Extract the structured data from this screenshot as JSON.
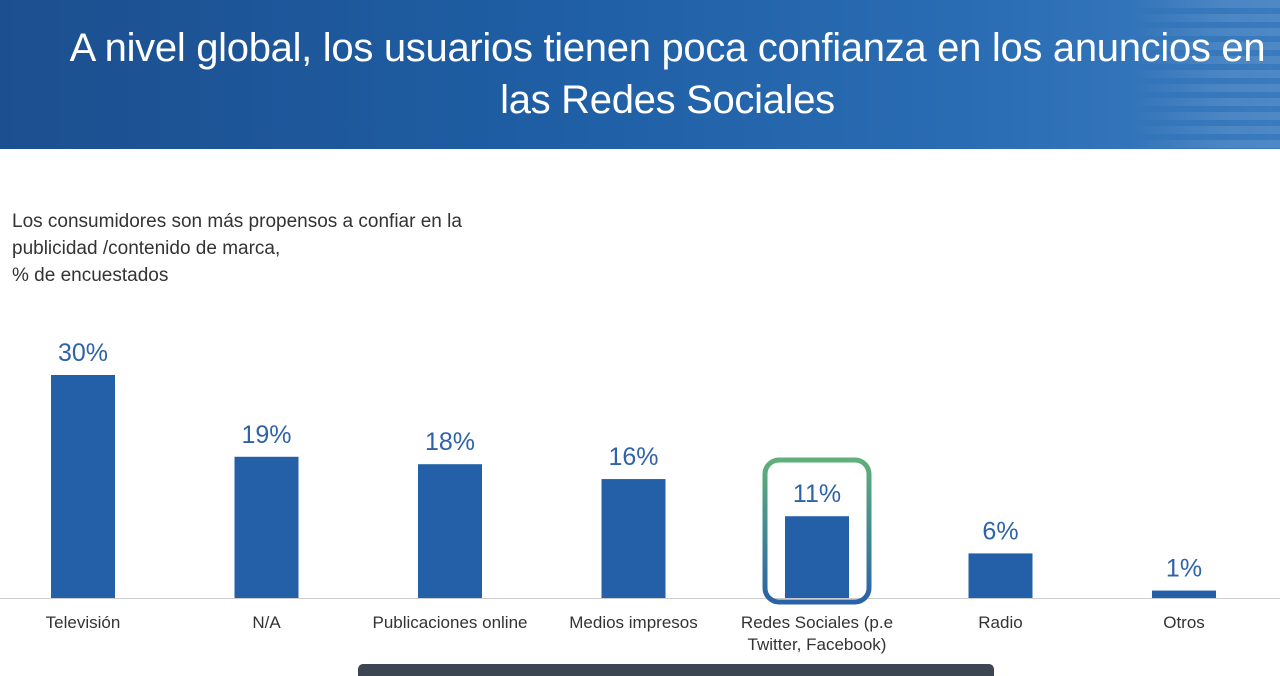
{
  "header": {
    "title": "A nivel global, los usuarios tienen poca confianza en los anuncios en las Redes Sociales"
  },
  "chart_data": {
    "type": "bar",
    "subtitle_lines": [
      "Los consumidores son más propensos a confiar en la",
      "publicidad /contenido de marca,",
      "% de encuestados"
    ],
    "categories": [
      [
        "Televisión"
      ],
      [
        "N/A"
      ],
      [
        "Publicaciones online"
      ],
      [
        "Medios impresos"
      ],
      [
        "Redes Sociales (p.e",
        "Twitter, Facebook)"
      ],
      [
        "Radio"
      ],
      [
        "Otros"
      ]
    ],
    "values": [
      30,
      19,
      18,
      16,
      11,
      6,
      1
    ],
    "value_labels": [
      "30%",
      "19%",
      "18%",
      "16%",
      "11%",
      "6%",
      "1%"
    ],
    "highlighted_category_index": 4,
    "ylim": [
      0,
      30
    ],
    "grid": false,
    "colors": {
      "bar": "#2360a8",
      "value_label": "#2f63a8",
      "category_label": "#333333",
      "axis": "#cccccc",
      "highlight_start": "#5fb07a",
      "highlight_end": "#2a62a8"
    }
  }
}
